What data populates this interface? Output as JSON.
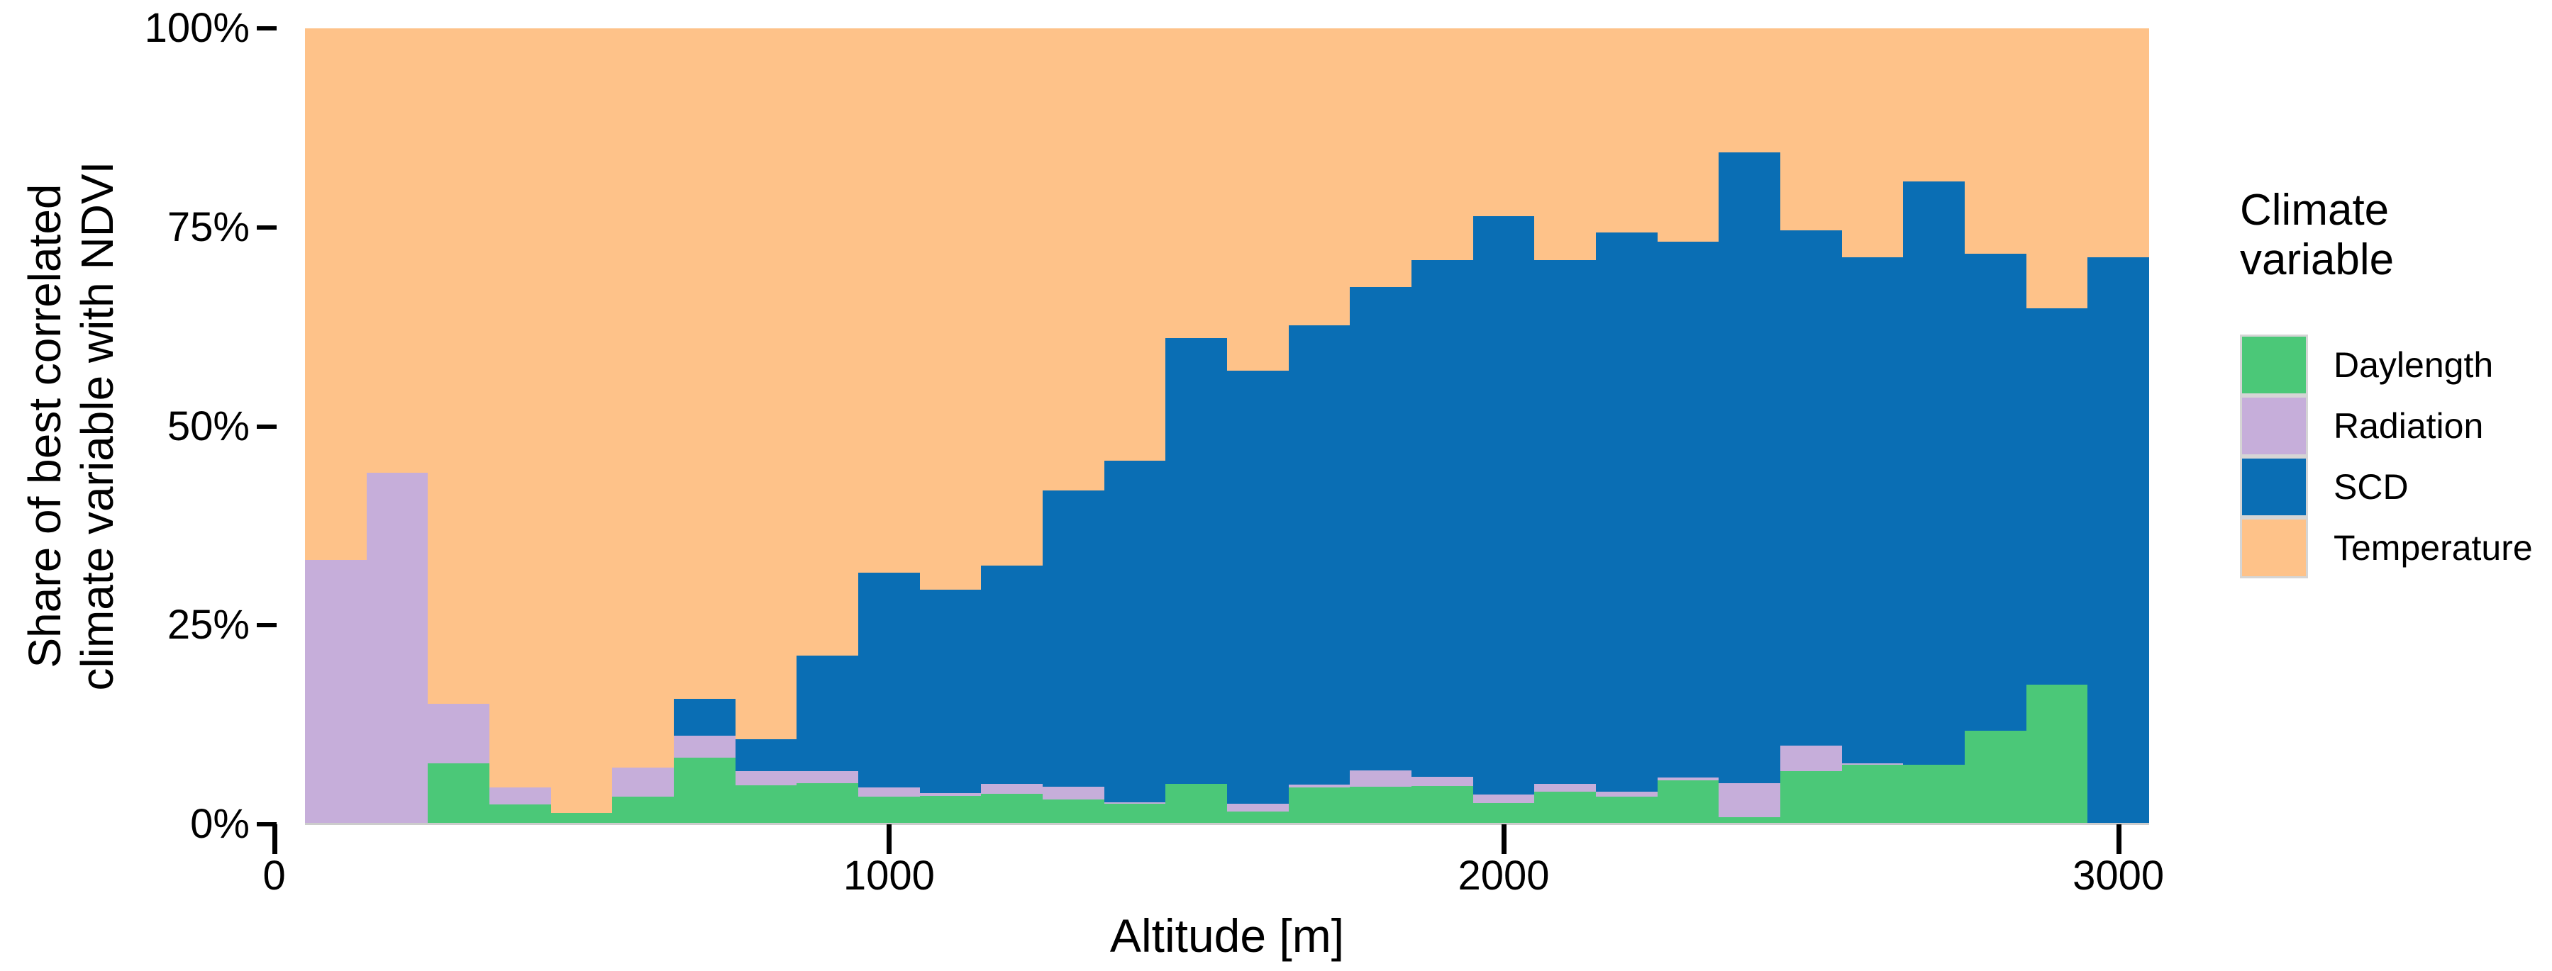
{
  "figure": {
    "background": "#ffffff",
    "text_color": "#000000"
  },
  "chart_data": {
    "type": "bar",
    "subtype": "stacked-percent-histogram",
    "title": "",
    "xlabel": "Altitude [m]",
    "ylabel_lines": [
      "Share of best correlated",
      "climate variable with NDVI"
    ],
    "x_axis": {
      "range_m": [
        50,
        3050
      ],
      "bin_width_m": 100,
      "ticks": [
        0,
        1000,
        2000,
        3000
      ],
      "tick_labels": [
        "0",
        "1000",
        "2000",
        "3000"
      ]
    },
    "y_axis": {
      "range_pct": [
        0,
        100
      ],
      "ticks": [
        0,
        25,
        50,
        75,
        100
      ],
      "tick_labels": [
        "0%",
        "25%",
        "50%",
        "75%",
        "100%"
      ]
    },
    "grid": "off",
    "categories": [
      100,
      200,
      300,
      400,
      500,
      600,
      700,
      800,
      900,
      1000,
      1100,
      1200,
      1300,
      1400,
      1500,
      1600,
      1700,
      1800,
      1900,
      2000,
      2100,
      2200,
      2300,
      2400,
      2500,
      2600,
      2700,
      2800,
      2900,
      3000
    ],
    "series": [
      {
        "name": "Daylength",
        "color": "#4bc878",
        "values": [
          0,
          0,
          7.7,
          2.5,
          1.4,
          3.5,
          8.4,
          4.9,
          5.2,
          3.5,
          3.6,
          3.8,
          3.1,
          2.6,
          5.1,
          1.6,
          4.6,
          4.7,
          4.8,
          2.7,
          4.1,
          3.5,
          5.5,
          0.9,
          6.7,
          7.5,
          7.5,
          11.8,
          17.5,
          0
        ]
      },
      {
        "name": "Radiation",
        "color": "#c6aeda",
        "values": [
          33.2,
          44.2,
          7.4,
          2.1,
          0,
          3.6,
          2.7,
          1.8,
          1.5,
          1.1,
          0.3,
          1.3,
          1.6,
          0.2,
          0,
          1.0,
          0.4,
          2.1,
          1.2,
          1.0,
          1.0,
          0.6,
          0.4,
          4.3,
          3.2,
          0.2,
          0,
          0,
          0,
          0
        ]
      },
      {
        "name": "SCD",
        "color": "#0a6eb4",
        "values": [
          0,
          0,
          0,
          0,
          0,
          0,
          4.7,
          4.0,
          14.5,
          27.0,
          25.6,
          27.4,
          37.2,
          42.9,
          56.0,
          54.4,
          57.7,
          60.7,
          64.9,
          72.7,
          65.8,
          70.3,
          67.3,
          79.2,
          64.7,
          63.5,
          73.3,
          59.9,
          47.3,
          71.2
        ]
      },
      {
        "name": "Temperature",
        "color": "#fec289",
        "values": [
          66.8,
          55.8,
          84.9,
          95.4,
          98.6,
          92.9,
          84.2,
          89.3,
          78.8,
          68.4,
          70.5,
          67.5,
          58.1,
          54.3,
          38.9,
          43.0,
          37.3,
          32.5,
          29.1,
          23.6,
          29.1,
          25.6,
          26.8,
          15.6,
          25.4,
          28.8,
          19.2,
          28.3,
          35.2,
          28.8
        ]
      }
    ],
    "legend": {
      "position": "right",
      "title_lines": [
        "Climate",
        "variable"
      ],
      "entries": [
        {
          "label": "Daylength",
          "color": "#4bc878"
        },
        {
          "label": "Radiation",
          "color": "#c6aeda"
        },
        {
          "label": "SCD",
          "color": "#0a6eb4"
        },
        {
          "label": "Temperature",
          "color": "#fec289"
        }
      ]
    }
  }
}
